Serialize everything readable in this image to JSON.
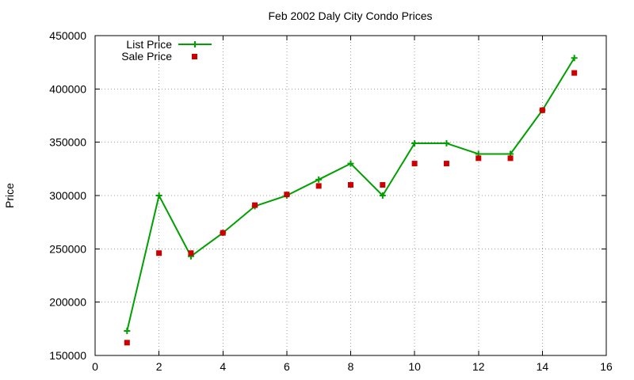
{
  "chart_data": {
    "type": "line",
    "title": "Feb 2002 Daly City Condo Prices",
    "xlabel": "",
    "ylabel": "Price",
    "xlim": [
      0,
      16
    ],
    "ylim": [
      150000,
      450000
    ],
    "xticks": [
      0,
      2,
      4,
      6,
      8,
      10,
      12,
      14,
      16
    ],
    "yticks": [
      150000,
      200000,
      250000,
      300000,
      350000,
      400000,
      450000
    ],
    "grid": true,
    "legend_position": "top-left",
    "series": [
      {
        "name": "List Price",
        "style": "linespoints",
        "marker": "plus",
        "color": "#00a000",
        "x": [
          1,
          2,
          3,
          4,
          5,
          6,
          7,
          8,
          9,
          10,
          11,
          12,
          13,
          14,
          15
        ],
        "y": [
          173000,
          300000,
          243000,
          265000,
          290000,
          300000,
          315000,
          330000,
          300000,
          349000,
          349000,
          339000,
          339000,
          380000,
          429000
        ]
      },
      {
        "name": "Sale Price",
        "style": "points",
        "marker": "square",
        "color": "#cc0000",
        "x": [
          1,
          2,
          3,
          4,
          5,
          6,
          7,
          8,
          9,
          10,
          11,
          12,
          13,
          14,
          15
        ],
        "y": [
          162000,
          246000,
          246000,
          265000,
          291000,
          301000,
          309000,
          310000,
          310000,
          330000,
          330000,
          335000,
          335000,
          380000,
          415000
        ]
      }
    ]
  }
}
